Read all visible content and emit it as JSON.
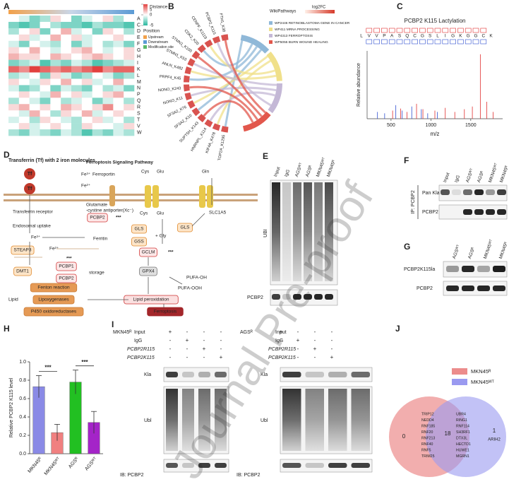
{
  "watermark": "Journal Pre-proof",
  "panel_labels": [
    "A",
    "B",
    "C",
    "D",
    "E",
    "F",
    "G",
    "H",
    "I",
    "J"
  ],
  "chart_data": [
    {
      "type": "heatmap",
      "rows": [
        "A",
        "C",
        "D",
        "E",
        "F",
        "G",
        "H",
        "I",
        "K",
        "L",
        "M",
        "N",
        "P",
        "Q",
        "R",
        "S",
        "T",
        "V",
        "W"
      ],
      "values": [
        [
          0,
          -1,
          -3,
          -2,
          1,
          0,
          -3,
          -1,
          0,
          1,
          -2,
          0
        ],
        [
          -3,
          -4,
          -3,
          0,
          -2,
          -3,
          -3,
          -4,
          -2,
          -3,
          -3,
          -4
        ],
        [
          -2,
          0,
          1,
          -3,
          0,
          2,
          -1,
          0,
          -3,
          1,
          0,
          -2
        ],
        [
          0,
          1,
          -1,
          0,
          2,
          0,
          1,
          -1,
          0,
          0,
          1,
          0
        ],
        [
          -1,
          -3,
          0,
          -1,
          -2,
          0,
          -3,
          -1,
          0,
          -2,
          -1,
          -3
        ],
        [
          1,
          0,
          2,
          0,
          -1,
          0,
          1,
          2,
          0,
          -1,
          0,
          1
        ],
        [
          2,
          1,
          1,
          0,
          2,
          1,
          0,
          1,
          2,
          1,
          0,
          1
        ],
        [
          -3,
          -2,
          -1,
          -4,
          -2,
          -3,
          -1,
          -2,
          -4,
          -3,
          -2,
          -1
        ],
        [
          4,
          3,
          5,
          4,
          3,
          4,
          3,
          4,
          5,
          3,
          4,
          4
        ],
        [
          -2,
          -1,
          0,
          -3,
          1,
          -1,
          -3,
          -2,
          0,
          -1,
          -3,
          -2
        ],
        [
          1,
          0,
          -1,
          1,
          0,
          2,
          0,
          1,
          -1,
          0,
          2,
          0
        ],
        [
          -1,
          -3,
          -2,
          0,
          -3,
          -1,
          -2,
          -3,
          0,
          -2,
          -1,
          -3
        ],
        [
          0,
          1,
          0,
          -1,
          2,
          0,
          1,
          -1,
          0,
          1,
          2,
          0
        ],
        [
          -2,
          0,
          -1,
          -3,
          0,
          -2,
          -1,
          0,
          -3,
          -1,
          0,
          -2
        ],
        [
          1,
          2,
          0,
          1,
          0,
          2,
          1,
          0,
          1,
          3,
          0,
          1
        ],
        [
          0,
          -1,
          2,
          0,
          -2,
          1,
          0,
          2,
          -1,
          0,
          1,
          0
        ],
        [
          -1,
          0,
          -2,
          1,
          0,
          -1,
          -2,
          0,
          1,
          -1,
          0,
          -2
        ],
        [
          0,
          1,
          -1,
          0,
          1,
          0,
          -2,
          1,
          0,
          0,
          -1,
          1
        ],
        [
          -2,
          -3,
          -1,
          -2,
          -3,
          -1,
          -2,
          -4,
          -2,
          -3,
          -1,
          -2
        ]
      ],
      "vlim": [
        -5,
        5
      ],
      "colors": [
        "#27b89e",
        "#ffffff",
        "#e2413f"
      ],
      "colorbar_title": "Distance",
      "colorbar_ticks": [
        5,
        0,
        -5
      ],
      "position_title": "Position",
      "position_legend": [
        {
          "name": "Upstream",
          "color": "#f2a14a"
        },
        {
          "name": "Downstream",
          "color": "#5b9bd5"
        },
        {
          "name": "Modification site",
          "color": "#59b96a"
        }
      ]
    },
    {
      "type": "stem",
      "title": "PCBP2 K115 Lactylation",
      "sequence": [
        "L",
        "V",
        "V",
        "P",
        "A",
        "S",
        "Q",
        "C",
        "G",
        "S",
        "L",
        "I",
        "G",
        "K",
        "G",
        "G",
        "C",
        "K"
      ],
      "xlabel": "m/z",
      "ylabel": "Relative abundance",
      "xlim": [
        200,
        1900
      ],
      "xticks": [
        500,
        1000,
        1500
      ],
      "ylim": [
        0,
        100
      ],
      "series": [
        {
          "color": "#2f4fd0",
          "x": [
            330,
            420,
            560,
            640,
            760,
            880,
            960,
            1080
          ],
          "values": [
            10,
            8,
            20,
            12,
            18,
            14,
            8,
            10
          ]
        },
        {
          "color": "#e03030",
          "x": [
            520,
            620,
            700,
            820,
            900,
            1050,
            1180,
            1300,
            1420,
            1520,
            1620,
            1700,
            1780
          ],
          "values": [
            12,
            15,
            10,
            22,
            14,
            12,
            16,
            10,
            14,
            18,
            95,
            25,
            10
          ]
        }
      ]
    },
    {
      "type": "bar",
      "categories": [
        "MKN45ᴿ",
        "MKN45ᵂᵀ",
        "AGSᴿ",
        "AGSᵂᵀ"
      ],
      "values": [
        0.73,
        0.23,
        0.78,
        0.34
      ],
      "errors": [
        0.12,
        0.09,
        0.13,
        0.12
      ],
      "colors": [
        "#8a8ae6",
        "#f08080",
        "#22c022",
        "#a424c8"
      ],
      "ylabel": "Relative PCBP2 K115 level",
      "ylim": [
        0,
        1
      ],
      "yticks": [
        {
          "value": 0,
          "label": "0.0"
        },
        0.2,
        0.4,
        0.6,
        0.8,
        {
          "value": 1,
          "label": "1.0"
        }
      ],
      "annotations": [
        "***",
        "***"
      ]
    }
  ],
  "chord": {
    "legend_title": "WikiPathways",
    "scale_title": "log2FC",
    "pathways": [
      {
        "name": "WP2446 RETINOBLASTOMA GENE IN CANCER",
        "color": "#8fb8d8"
      },
      {
        "name": "WP411 MRNA PROCESSING",
        "color": "#f0e08a"
      },
      {
        "name": "WP4313 FERROPTOSIS",
        "color": "#c4b8d6"
      },
      {
        "name": "WP5055 BURN WOUND HEALING",
        "color": "#e2574c"
      }
    ],
    "sites": [
      {
        "label": "TOP2A_K1295",
        "color": "#333333"
      },
      {
        "label": "KIF4A_K478",
        "color": "#333333"
      },
      {
        "label": "HNRNPL_K114",
        "color": "#333333"
      },
      {
        "label": "SUPT5H_K143",
        "color": "#333333"
      },
      {
        "label": "SF3A2_K10",
        "color": "#333333"
      },
      {
        "label": "SF3A2_K76",
        "color": "#333333"
      },
      {
        "label": "NONO_K11",
        "color": "#333333"
      },
      {
        "label": "NONO_K243",
        "color": "#333333"
      },
      {
        "label": "PRPF4_K45",
        "color": "#333333"
      },
      {
        "label": "ANLN_K482",
        "color": "#333333"
      },
      {
        "label": "STMN1_K53",
        "color": "#333333"
      },
      {
        "label": "STMN1_K100",
        "color": "#333333"
      },
      {
        "label": "CDK2_K20",
        "color": "#333333"
      },
      {
        "label": "CENPF_K1119",
        "color": "#e03030"
      },
      {
        "label": "PCBP2_K115",
        "color": "#e03030"
      },
      {
        "label": "FTH1_K38",
        "color": "#e03030"
      }
    ]
  },
  "pathway": {
    "nodes": [
      "Transferrin (Tf) with 2 iron molecules",
      "Ferroptosis Signaling Pathway",
      "Tf",
      "Tf",
      "Fe³⁺",
      "Ferroportin",
      "Fe²⁺",
      "Cys",
      "Glu",
      "Gln",
      "Glutamate",
      "-cystine antiporter(Xc⁻)",
      "SLC1A5",
      "Transferrin receptor",
      "Endosomal uptake",
      "PCBP2",
      "***",
      "Cys",
      "Glu",
      "GLS",
      "Fe³⁺",
      "Ferritin",
      "STEAP3",
      "Fe²⁺",
      "GLS",
      "+ Gly",
      "GSS",
      "DMT1",
      "***",
      "PCBP1",
      "storage",
      "PCBP2",
      "***",
      "GCLM",
      "***",
      "GPX4",
      "PUFA-OH",
      "PUFA-OOH",
      "Lipid",
      "Fenton reaction",
      "Lipoxygenases",
      "P450 oxidoreductases",
      "Lipid peroxidation",
      "Ferroptosis"
    ]
  },
  "blot_e": {
    "lanes": [
      "Input",
      "IgG",
      "AGSᵂᵀ",
      "AGSᴿ",
      "MKN45ᵂᵀ",
      "MKN45ᴿ"
    ],
    "rows": [
      "UBI",
      "PCBP2"
    ]
  },
  "blot_f": {
    "lanes": [
      "Input",
      "IgG",
      "AGSᵂᵀ",
      "AGSᴿ",
      "MKN45ᵂᵀ",
      "MKN45ᴿ"
    ],
    "rows": [
      "Pan Kla",
      "PCBP2"
    ],
    "side": "IP: PCBP2"
  },
  "blot_g": {
    "lanes": [
      "AGSᵂᵀ",
      "AGSᴿ",
      "MKN45ᵂᵀ",
      "MKN45ᴿ"
    ],
    "rows": [
      "PCBP2K115la",
      "PCBP2"
    ]
  },
  "blot_i": {
    "cells": [
      "MKN45ᴿ",
      "AGSᴿ"
    ],
    "conditions": [
      "Input",
      "IgG",
      "PCBP2R115",
      "PCBP2K115"
    ],
    "signs": [
      [
        "+",
        "-",
        "-",
        "-"
      ],
      [
        "-",
        "+",
        "-",
        "-"
      ],
      [
        "-",
        "-",
        "+",
        "-"
      ],
      [
        "-",
        "-",
        "-",
        "+"
      ]
    ],
    "rows": [
      "Kla",
      "Ubl",
      "IB: PCBP2"
    ]
  },
  "venn": {
    "sets": [
      {
        "name": "MKN45ᴿ",
        "color": "#ec8c8c"
      },
      {
        "name": "MKN45ᵂᵀ",
        "color": "#9a9af0"
      }
    ],
    "only_left": 0,
    "both": 18,
    "only_right": 1,
    "genes_left": [
      "TRIP12",
      "NEDD4",
      "RNF185",
      "RNF20",
      "RNF213",
      "RNF40",
      "RNF5",
      "TRIM25"
    ],
    "genes_right": [
      "UBR4",
      "RING1",
      "RNF114",
      "SH3RF1",
      "DTX3L",
      "HECTD1",
      "HUWE1",
      "MGRN1"
    ],
    "right_gene": "ARIH2"
  }
}
